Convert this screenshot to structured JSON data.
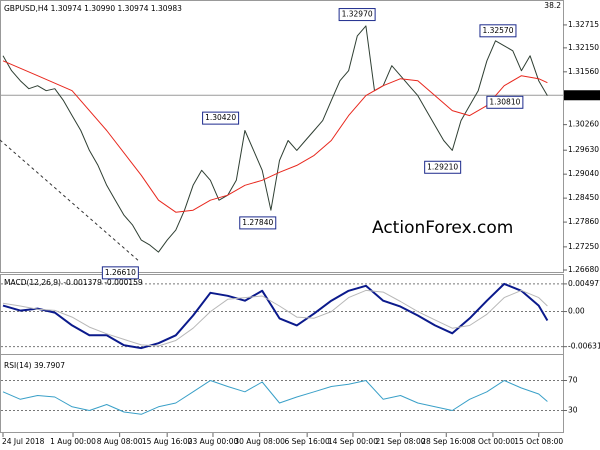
{
  "chart_data": [
    {
      "type": "line",
      "title": "GBPUSD,H4  1.30974 1.30990 1.30974 1.30983",
      "fib_label": "38.2",
      "watermark": "ActionForex.com",
      "xlim": [
        0,
        64
      ],
      "xticks": [
        {
          "value": 0,
          "label": "24 Jul 2018"
        },
        {
          "value": 8.1,
          "label": "1 Aug 00:00"
        },
        {
          "value": 13.5,
          "label": "8 Aug 08:00"
        },
        {
          "value": 19.0,
          "label": "15 Aug 16:00"
        },
        {
          "value": 24.3,
          "label": "23 Aug 00:00"
        },
        {
          "value": 29.7,
          "label": "30 Aug 08:00"
        },
        {
          "value": 35.2,
          "label": "6 Sep 16:00"
        },
        {
          "value": 40.5,
          "label": "14 Sep 00:00"
        },
        {
          "value": 46.0,
          "label": "21 Sep 08:00"
        },
        {
          "value": 51.3,
          "label": "28 Sep 16:00"
        },
        {
          "value": 56.7,
          "label": "8 Oct 00:00"
        },
        {
          "value": 62.0,
          "label": "15 Oct 08:00"
        }
      ],
      "ylim": [
        1.26631,
        1.33304
      ],
      "yticks": [
        1.32715,
        {
          "value": 1.3215,
          "label": "1.32150"
        },
        {
          "value": 1.3156,
          "label": "1.31560"
        },
        {
          "value": 1.3026,
          "label": "1.30260"
        },
        {
          "value": 1.2963,
          "label": "1.29630"
        },
        {
          "value": 1.2904,
          "label": "1.29040"
        },
        {
          "value": 1.2845,
          "label": "1.28450"
        },
        {
          "value": 1.2786,
          "label": "1.27860"
        },
        {
          "value": 1.2725,
          "label": "1.27250"
        },
        {
          "value": 1.2668,
          "label": "1.26680"
        }
      ],
      "current_price": 1.30983,
      "annotations": [
        {
          "value": 1.3297,
          "label": "1.32970",
          "x": 38.9
        },
        {
          "value": 1.3257,
          "label": "1.32570",
          "x": 55.2
        },
        {
          "value": 1.3042,
          "label": "1.30420",
          "x": 23.1
        },
        {
          "value": 1.3081,
          "label": "1.30810",
          "x": 56.0
        },
        {
          "value": 1.2921,
          "label": "1.29210",
          "x": 48.8
        },
        {
          "value": 1.2784,
          "label": "1.27840",
          "x": 27.4
        },
        {
          "value": 1.2661,
          "label": "1.26610",
          "x": 11.5
        }
      ],
      "series": [
        {
          "color": "#2f3f33",
          "width": 1,
          "x": [
            0,
            1,
            2,
            3,
            4,
            5,
            6,
            7,
            8,
            9,
            10,
            11,
            12,
            13,
            14,
            15,
            16,
            17,
            18,
            19,
            20,
            21,
            22,
            23,
            24,
            25,
            26,
            27,
            28,
            29,
            30,
            31,
            32,
            33,
            34,
            35,
            36,
            37,
            38,
            39,
            40,
            41,
            42,
            43,
            44,
            45,
            46,
            47,
            48,
            49,
            50,
            51,
            52,
            53,
            54,
            55,
            56,
            57,
            58,
            59,
            60,
            61,
            62,
            63
          ],
          "values": [
            1.31955,
            1.31587,
            1.31342,
            1.31145,
            1.31219,
            1.31096,
            1.31145,
            1.30851,
            1.30483,
            1.30115,
            1.29625,
            1.29257,
            1.28766,
            1.28398,
            1.2803,
            1.27785,
            1.27417,
            1.27294,
            1.27122,
            1.27417,
            1.27662,
            1.28153,
            1.28766,
            1.29134,
            1.28889,
            1.28398,
            1.28521,
            1.28889,
            1.30115,
            1.29625,
            1.29134,
            1.28153,
            1.29379,
            1.2987,
            1.29625,
            1.2987,
            1.30115,
            1.3036,
            1.30851,
            1.31342,
            1.31587,
            1.32445,
            1.32691,
            1.31096,
            1.31219,
            1.3171,
            1.31464,
            1.31219,
            1.30974,
            1.30606,
            1.30238,
            1.2987,
            1.29625,
            1.3036,
            1.30728,
            1.31096,
            1.31832,
            1.32323,
            1.322,
            1.32078,
            1.31587,
            1.31955,
            1.31342,
            1.30974
          ]
        },
        {
          "color": "#e8281e",
          "width": 1,
          "x": [
            0,
            4,
            8,
            12,
            16,
            18,
            20,
            22,
            24,
            26,
            28,
            30,
            32,
            34,
            36,
            38,
            40,
            42,
            44,
            46,
            48,
            50,
            52,
            54,
            56,
            58,
            60,
            62,
            63
          ],
          "values": [
            1.31832,
            1.31464,
            1.31096,
            1.30115,
            1.29011,
            1.28398,
            1.28104,
            1.28153,
            1.28398,
            1.28521,
            1.28766,
            1.28889,
            1.29085,
            1.29257,
            1.29502,
            1.2987,
            1.30483,
            1.30974,
            1.31219,
            1.31391,
            1.31342,
            1.30974,
            1.30606,
            1.30483,
            1.30728,
            1.31219,
            1.31464,
            1.31391,
            1.31293
          ]
        }
      ]
    },
    {
      "type": "line",
      "title": "MACD(12,26,9) -0.001379 -0.000159",
      "xlim": [
        0,
        64
      ],
      "ylim": [
        -0.00763,
        0.00657
      ],
      "yticks": [
        0.004971,
        {
          "value": 0,
          "label": "0.00"
        },
        -0.006311
      ],
      "grid": true,
      "series": [
        {
          "color": "#0b1a8c",
          "width": 2,
          "x": [
            0,
            2,
            4,
            6,
            8,
            10,
            12,
            14,
            16,
            18,
            20,
            22,
            24,
            26,
            28,
            30,
            32,
            34,
            36,
            38,
            40,
            42,
            44,
            46,
            48,
            50,
            52,
            54,
            56,
            58,
            60,
            62,
            63
          ],
          "values": [
            0.00107,
            0.00018,
            0.00053,
            -0.00018,
            -0.00249,
            -0.00426,
            -0.00426,
            -0.00604,
            -0.00657,
            -0.00568,
            -0.00426,
            -0.00071,
            0.00337,
            0.00284,
            0.00195,
            0.00373,
            -0.00124,
            -0.00249,
            -0.00036,
            0.00195,
            0.00373,
            0.00462,
            0.00195,
            0.00089,
            -0.00071,
            -0.00249,
            -0.00391,
            -0.00124,
            0.00195,
            0.00497,
            0.00373,
            0.00107,
            -0.0016
          ]
        },
        {
          "color": "#b8b8b8",
          "width": 1,
          "x": [
            0,
            2,
            4,
            6,
            8,
            10,
            12,
            14,
            16,
            18,
            20,
            22,
            24,
            26,
            28,
            30,
            32,
            34,
            36,
            38,
            40,
            42,
            44,
            46,
            48,
            50,
            52,
            54,
            56,
            58,
            60,
            62,
            63
          ],
          "values": [
            0.0015,
            0.001,
            0.0004,
            0.0002,
            -0.001,
            -0.0028,
            -0.004,
            -0.005,
            -0.006,
            -0.0062,
            -0.0052,
            -0.003,
            0,
            0.0022,
            0.0025,
            0.0028,
            0.001,
            -0.001,
            -0.0012,
            0,
            0.0025,
            0.0038,
            0.0035,
            0.0018,
            0,
            -0.0015,
            -0.003,
            -0.0025,
            -0.0005,
            0.0025,
            0.0038,
            0.0025,
            0.001
          ]
        }
      ]
    },
    {
      "type": "line",
      "title": "RSI(14) 39.7907",
      "xlim": [
        0,
        64
      ],
      "ylim": [
        0,
        100
      ],
      "yticks": [
        70,
        30
      ],
      "grid": true,
      "series": [
        {
          "color": "#3aa0c8",
          "width": 1,
          "x": [
            0,
            2,
            4,
            6,
            8,
            10,
            12,
            14,
            16,
            18,
            20,
            22,
            24,
            26,
            28,
            30,
            32,
            34,
            36,
            38,
            40,
            42,
            44,
            46,
            48,
            50,
            52,
            54,
            56,
            58,
            60,
            62,
            63
          ],
          "values": [
            55,
            45,
            50,
            48,
            35,
            30,
            38,
            28,
            25,
            35,
            40,
            55,
            70,
            62,
            55,
            68,
            40,
            48,
            55,
            62,
            65,
            70,
            45,
            50,
            40,
            35,
            30,
            45,
            55,
            70,
            60,
            52,
            42
          ]
        }
      ]
    }
  ]
}
